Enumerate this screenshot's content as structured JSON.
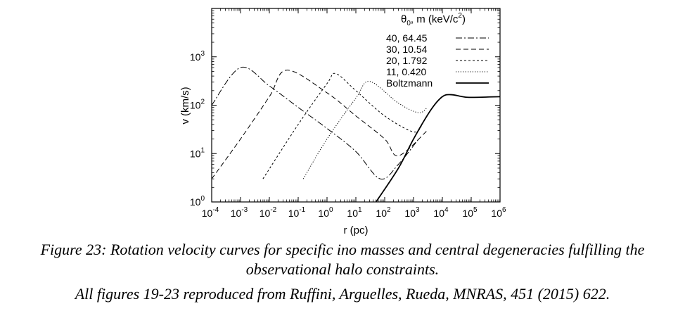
{
  "chart_data": {
    "type": "line",
    "xscale": "log",
    "yscale": "log",
    "xlabel": "r (pc)",
    "ylabel": "v (km/s)",
    "xlim": [
      0.0001,
      1000000
    ],
    "ylim": [
      1,
      10000
    ],
    "x_ticks": [
      {
        "base": "10",
        "exp": "-4",
        "value": 0.0001
      },
      {
        "base": "10",
        "exp": "-3",
        "value": 0.001
      },
      {
        "base": "10",
        "exp": "-2",
        "value": 0.01
      },
      {
        "base": "10",
        "exp": "-1",
        "value": 0.1
      },
      {
        "base": "10",
        "exp": "0",
        "value": 1
      },
      {
        "base": "10",
        "exp": "1",
        "value": 10
      },
      {
        "base": "10",
        "exp": "2",
        "value": 100
      },
      {
        "base": "10",
        "exp": "3",
        "value": 1000
      },
      {
        "base": "10",
        "exp": "4",
        "value": 10000
      },
      {
        "base": "10",
        "exp": "5",
        "value": 100000
      },
      {
        "base": "10",
        "exp": "6",
        "value": 1000000
      }
    ],
    "y_ticks": [
      {
        "base": "10",
        "exp": "0",
        "value": 1
      },
      {
        "base": "10",
        "exp": "1",
        "value": 10
      },
      {
        "base": "10",
        "exp": "2",
        "value": 100
      },
      {
        "base": "10",
        "exp": "3",
        "value": 1000
      }
    ],
    "legend": {
      "placement": "top-right",
      "header": {
        "theta": "θ",
        "sub": "0",
        "rest": ",   m (keV/c",
        "sup": "2",
        "close": ")"
      }
    },
    "series": [
      {
        "name": "40,   64.45",
        "dash": "dash-dot",
        "x": [
          0.0001,
          0.001,
          0.01,
          0.1,
          1,
          10,
          70,
          300,
          1500
        ],
        "y": [
          100,
          600,
          250,
          90,
          33,
          11,
          3,
          6,
          20
        ]
      },
      {
        "name": "30,   10.54",
        "dash": "dashed",
        "x": [
          0.0001,
          0.001,
          0.01,
          0.04,
          1,
          10,
          100,
          300,
          3000
        ],
        "y": [
          3,
          20,
          150,
          530,
          180,
          60,
          20,
          9,
          30
        ]
      },
      {
        "name": "20,   1.792",
        "dash": "short-dashed",
        "x": [
          0.006,
          0.1,
          1,
          2,
          10,
          100,
          1000,
          2000
        ],
        "y": [
          3,
          40,
          280,
          450,
          200,
          60,
          28,
          40
        ]
      },
      {
        "name": "11,   0.420",
        "dash": "dotted",
        "x": [
          0.15,
          1,
          10,
          30,
          300,
          1500,
          3000
        ],
        "y": [
          3,
          20,
          140,
          310,
          110,
          70,
          90
        ]
      },
      {
        "name": "Boltzmann",
        "dash": "solid",
        "x": [
          50,
          300,
          1000,
          4000,
          10000,
          20000,
          50000,
          100000,
          1000000
        ],
        "y": [
          1,
          5,
          20,
          80,
          150,
          165,
          150,
          145,
          150
        ]
      }
    ]
  },
  "caption": {
    "line1": "Figure 23: Rotation velocity curves for specific ino masses and central degeneracies fulfilling the",
    "line2": "observational halo constraints.",
    "line3": "All figures 19-23 reproduced from Ruffini, Arguelles, Rueda, MNRAS, 451 (2015) 622."
  }
}
